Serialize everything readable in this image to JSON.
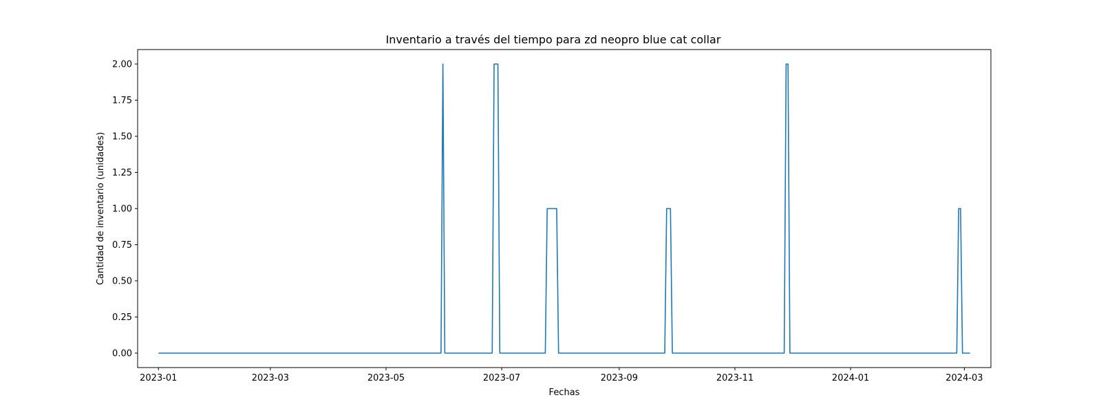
{
  "chart_data": {
    "type": "line",
    "title": "Inventario a través del tiempo para zd neopro blue cat collar",
    "xlabel": "Fechas",
    "ylabel": "Cantidad de inventario (unidades)",
    "x_axis_type": "date",
    "xlim": [
      "2022-12-21",
      "2024-03-15"
    ],
    "ylim": [
      -0.1,
      2.1
    ],
    "x_ticks": [
      "2023-01",
      "2023-03",
      "2023-05",
      "2023-07",
      "2023-09",
      "2023-11",
      "2024-01",
      "2024-03"
    ],
    "y_ticks": [
      "0.00",
      "0.25",
      "0.50",
      "0.75",
      "1.00",
      "1.25",
      "1.50",
      "1.75",
      "2.00"
    ],
    "grid": false,
    "legend": "none",
    "series": [
      {
        "color": "#1f77b4",
        "x": [
          "2023-01-01",
          "2023-05-30",
          "2023-05-31",
          "2023-06-01",
          "2023-06-26",
          "2023-06-27",
          "2023-06-29",
          "2023-06-30",
          "2023-07-24",
          "2023-07-25",
          "2023-07-30",
          "2023-07-31",
          "2023-09-25",
          "2023-09-26",
          "2023-09-28",
          "2023-09-29",
          "2023-11-27",
          "2023-11-28",
          "2023-11-29",
          "2023-11-30",
          "2024-02-26",
          "2024-02-27",
          "2024-02-28",
          "2024-02-29",
          "2024-03-04"
        ],
        "y": [
          0,
          0,
          2,
          0,
          0,
          2,
          2,
          0,
          0,
          1,
          1,
          0,
          0,
          1,
          1,
          0,
          0,
          2,
          2,
          0,
          0,
          1,
          1,
          0,
          0
        ]
      }
    ]
  }
}
